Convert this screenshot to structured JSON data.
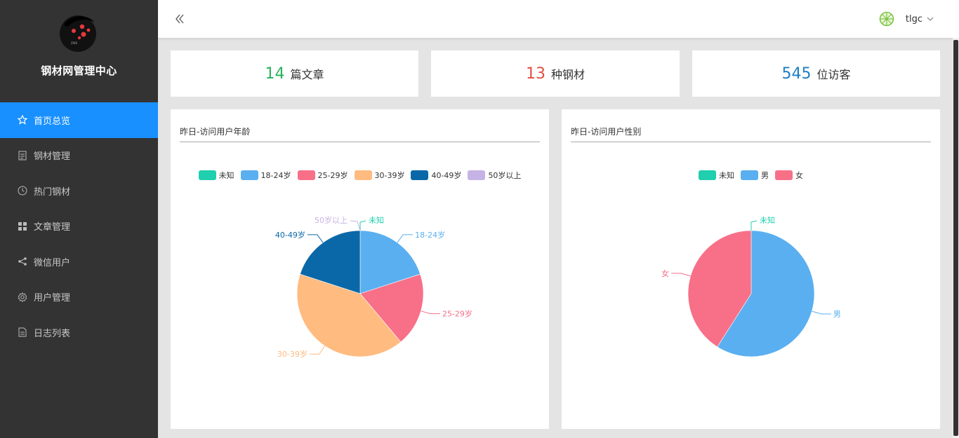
{
  "app": {
    "brand": "钢材网管理中心"
  },
  "sidebar": {
    "items": [
      {
        "label": "首页总览",
        "icon": "star-icon",
        "active": true
      },
      {
        "label": "钢材管理",
        "icon": "document-icon",
        "active": false
      },
      {
        "label": "热门钢材",
        "icon": "clock-icon",
        "active": false
      },
      {
        "label": "文章管理",
        "icon": "grid-icon",
        "active": false
      },
      {
        "label": "微信用户",
        "icon": "share-icon",
        "active": false
      },
      {
        "label": "用户管理",
        "icon": "gear-icon",
        "active": false
      },
      {
        "label": "日志列表",
        "icon": "file-icon",
        "active": false
      }
    ]
  },
  "header": {
    "username": "tlgc"
  },
  "stats": [
    {
      "value": "14",
      "label": "篇文章",
      "color": "#27b35b"
    },
    {
      "value": "13",
      "label": "种钢材",
      "color": "#e54d42"
    },
    {
      "value": "545",
      "label": "位访客",
      "color": "#1e7fc4"
    }
  ],
  "panels": {
    "age": {
      "title": "昨日-访问用户年龄"
    },
    "gender": {
      "title": "昨日-访问用户性别"
    }
  },
  "chart_data": [
    {
      "type": "pie",
      "title": "昨日-访问用户年龄",
      "categories": [
        "未知",
        "18-24岁",
        "25-29岁",
        "30-39岁",
        "40-49岁",
        "50岁以上"
      ],
      "values": [
        0,
        18,
        17,
        37,
        18,
        0
      ],
      "colors": [
        "#1fcfae",
        "#5aaff0",
        "#f77088",
        "#ffbb80",
        "#0b68a8",
        "#c6b3e6"
      ],
      "legend": "top-center"
    },
    {
      "type": "pie",
      "title": "昨日-访问用户性别",
      "categories": [
        "未知",
        "男",
        "女"
      ],
      "values": [
        0,
        59,
        41
      ],
      "colors": [
        "#1fcfae",
        "#5aaff0",
        "#f77088"
      ],
      "legend": "top-center"
    }
  ]
}
